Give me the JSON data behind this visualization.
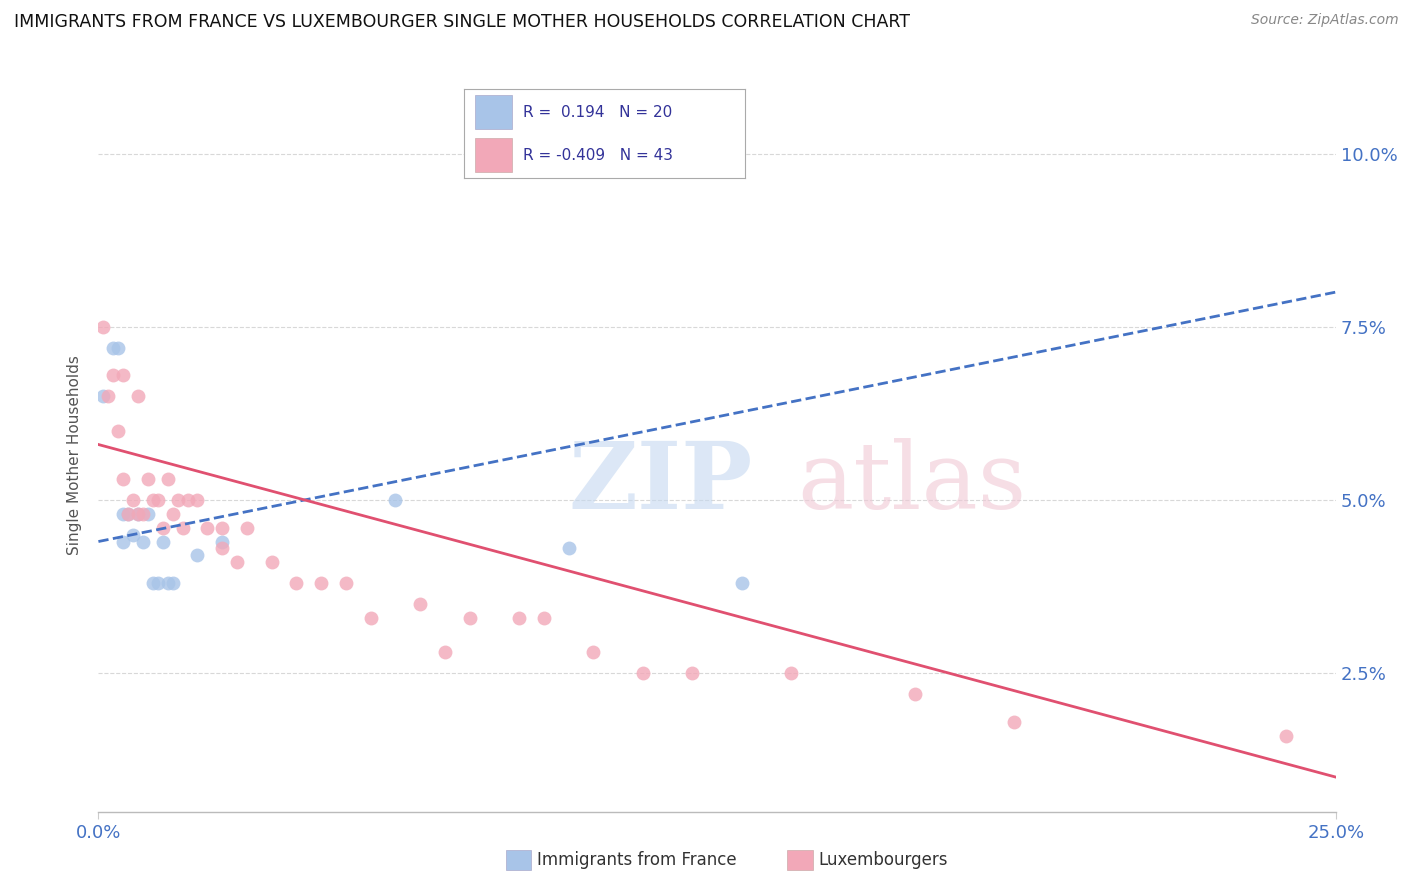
{
  "title": "IMMIGRANTS FROM FRANCE VS LUXEMBOURGER SINGLE MOTHER HOUSEHOLDS CORRELATION CHART",
  "source": "Source: ZipAtlas.com",
  "ylabel": "Single Mother Households",
  "ytick_values": [
    0.025,
    0.05,
    0.075,
    0.1
  ],
  "ytick_labels": [
    "2.5%",
    "5.0%",
    "7.5%",
    "10.0%"
  ],
  "xlim": [
    0.0,
    0.25
  ],
  "ylim": [
    0.005,
    0.108
  ],
  "legend1_r": "0.194",
  "legend1_n": "20",
  "legend2_r": "-0.409",
  "legend2_n": "43",
  "blue_color": "#a8c4e8",
  "pink_color": "#f2a8b8",
  "blue_line_color": "#4472c4",
  "pink_line_color": "#e05070",
  "blue_points_x": [
    0.001,
    0.003,
    0.004,
    0.005,
    0.005,
    0.006,
    0.007,
    0.008,
    0.009,
    0.01,
    0.011,
    0.012,
    0.013,
    0.014,
    0.015,
    0.02,
    0.025,
    0.06,
    0.095,
    0.13
  ],
  "blue_points_y": [
    0.065,
    0.072,
    0.072,
    0.048,
    0.044,
    0.048,
    0.045,
    0.048,
    0.044,
    0.048,
    0.038,
    0.038,
    0.044,
    0.038,
    0.038,
    0.042,
    0.044,
    0.05,
    0.043,
    0.038
  ],
  "pink_points_x": [
    0.001,
    0.002,
    0.003,
    0.004,
    0.005,
    0.005,
    0.006,
    0.007,
    0.008,
    0.008,
    0.009,
    0.01,
    0.011,
    0.012,
    0.013,
    0.014,
    0.015,
    0.016,
    0.017,
    0.018,
    0.02,
    0.022,
    0.025,
    0.025,
    0.028,
    0.03,
    0.035,
    0.04,
    0.045,
    0.05,
    0.055,
    0.065,
    0.07,
    0.075,
    0.085,
    0.09,
    0.1,
    0.11,
    0.12,
    0.14,
    0.165,
    0.185,
    0.24
  ],
  "pink_points_y": [
    0.075,
    0.065,
    0.068,
    0.06,
    0.053,
    0.068,
    0.048,
    0.05,
    0.048,
    0.065,
    0.048,
    0.053,
    0.05,
    0.05,
    0.046,
    0.053,
    0.048,
    0.05,
    0.046,
    0.05,
    0.05,
    0.046,
    0.043,
    0.046,
    0.041,
    0.046,
    0.041,
    0.038,
    0.038,
    0.038,
    0.033,
    0.035,
    0.028,
    0.033,
    0.033,
    0.033,
    0.028,
    0.025,
    0.025,
    0.025,
    0.022,
    0.018,
    0.016
  ],
  "blue_trend_x": [
    0.0,
    0.25
  ],
  "blue_trend_y": [
    0.044,
    0.08
  ],
  "pink_trend_x": [
    0.0,
    0.25
  ],
  "pink_trend_y": [
    0.058,
    0.01
  ],
  "grid_color": "#d8d8d8",
  "background_color": "#ffffff",
  "marker_size": 100
}
